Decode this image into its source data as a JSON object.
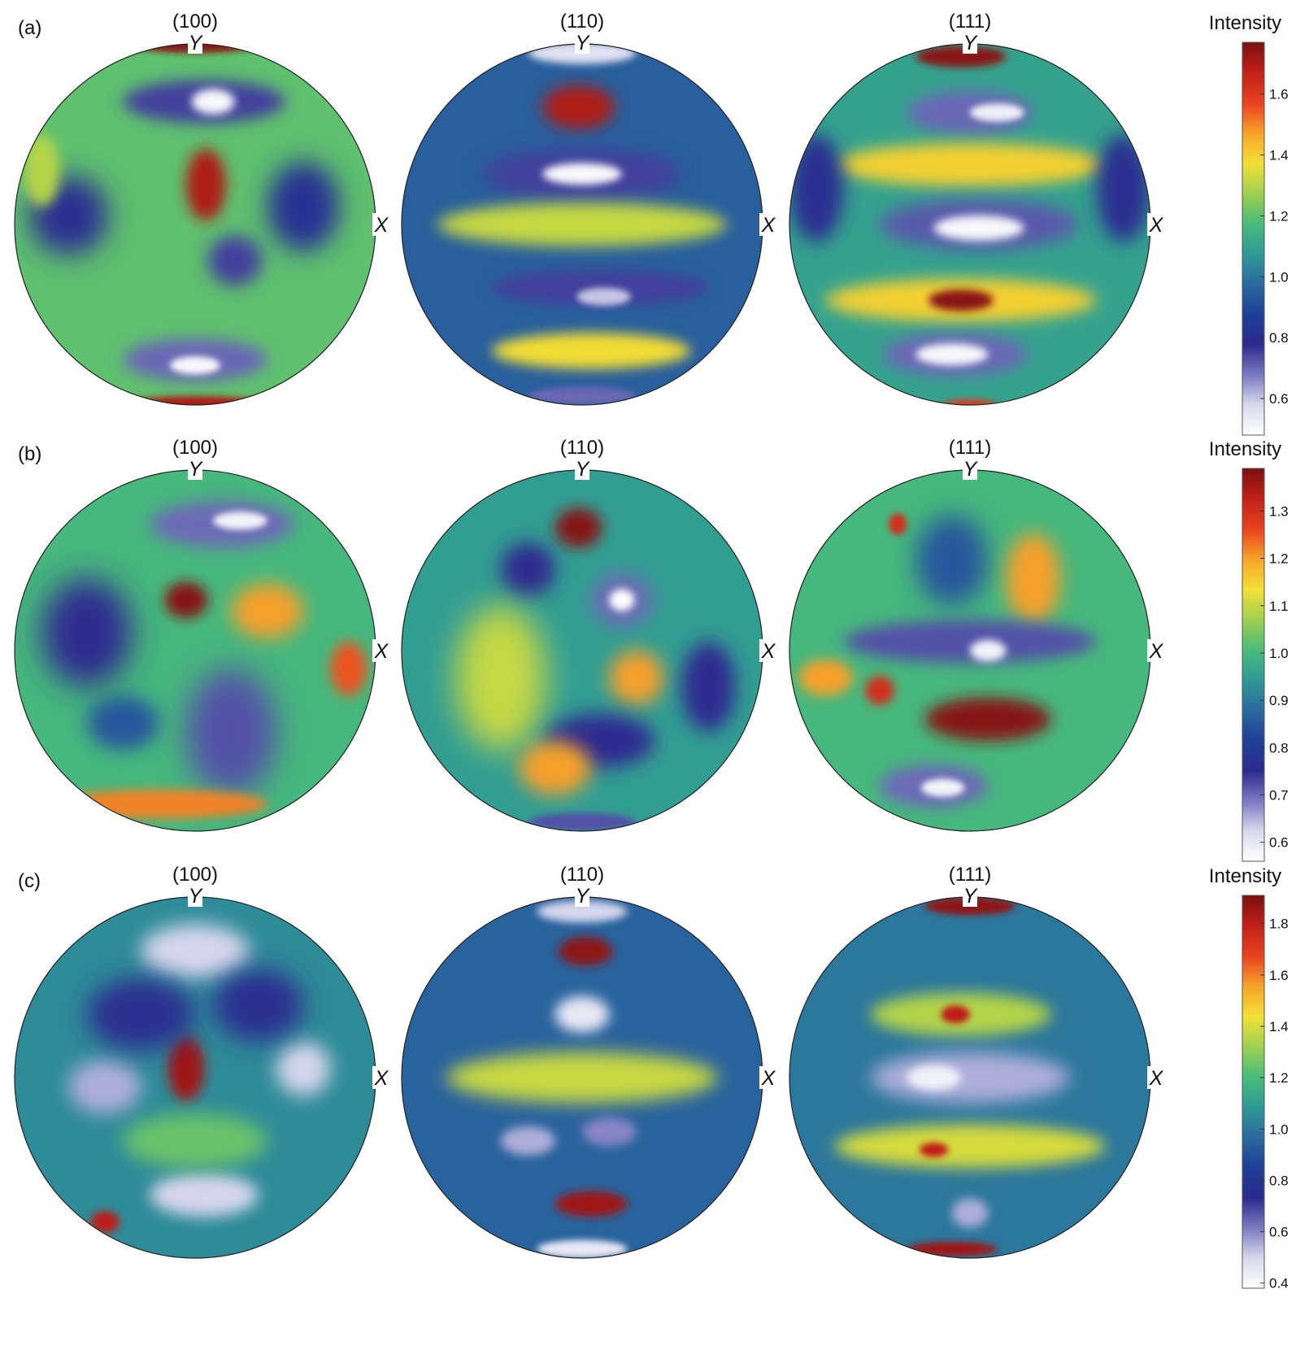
{
  "chart_data": {
    "type": "heatmap",
    "colormap": [
      "#ffffff",
      "#d8d8ee",
      "#7b79c0",
      "#2c2a8e",
      "#1f3f97",
      "#2b6a9e",
      "#2f9a95",
      "#49bb7a",
      "#9fd050",
      "#f2e135",
      "#f7a22a",
      "#e8421f",
      "#c3201a",
      "#7a1010"
    ],
    "axis_labels": {
      "y": "Y",
      "x": "X"
    },
    "rows": [
      {
        "label": "(a)",
        "colorbar": {
          "title": "Intensity",
          "range": [
            0.48,
            1.77
          ],
          "ticks": [
            "1.6",
            "1.4",
            "1.2",
            "1.0",
            "0.8",
            "0.6"
          ],
          "tick_values": [
            1.6,
            1.4,
            1.2,
            1.0,
            0.8,
            0.6
          ]
        },
        "poles": [
          {
            "title": "(100)",
            "background": 1.2,
            "features": [
              {
                "x": 0.0,
                "y": 1.0,
                "rx": 0.35,
                "ry": 0.05,
                "v": 1.75
              },
              {
                "x": 0.0,
                "y": -1.0,
                "rx": 0.4,
                "ry": 0.05,
                "v": 1.7
              },
              {
                "x": 0.05,
                "y": 0.68,
                "rx": 0.45,
                "ry": 0.12,
                "v": 0.75
              },
              {
                "x": 0.1,
                "y": 0.68,
                "rx": 0.12,
                "ry": 0.07,
                "v": 0.5
              },
              {
                "x": 0.06,
                "y": 0.22,
                "rx": 0.11,
                "ry": 0.2,
                "v": 1.7
              },
              {
                "x": -0.7,
                "y": 0.05,
                "rx": 0.22,
                "ry": 0.22,
                "v": 0.8
              },
              {
                "x": 0.6,
                "y": 0.1,
                "rx": 0.2,
                "ry": 0.25,
                "v": 0.82
              },
              {
                "x": 0.22,
                "y": -0.2,
                "rx": 0.15,
                "ry": 0.14,
                "v": 0.75
              },
              {
                "x": 0.0,
                "y": -0.75,
                "rx": 0.4,
                "ry": 0.12,
                "v": 0.7
              },
              {
                "x": 0.0,
                "y": -0.78,
                "rx": 0.14,
                "ry": 0.05,
                "v": 0.5
              },
              {
                "x": -0.85,
                "y": 0.3,
                "rx": 0.1,
                "ry": 0.2,
                "v": 1.3
              }
            ]
          },
          {
            "title": "(110)",
            "background": 0.95,
            "features": [
              {
                "x": 0.0,
                "y": 0.95,
                "rx": 0.3,
                "ry": 0.06,
                "v": 0.55
              },
              {
                "x": -0.02,
                "y": 0.65,
                "rx": 0.2,
                "ry": 0.12,
                "v": 1.7
              },
              {
                "x": 0.0,
                "y": 0.28,
                "rx": 0.55,
                "ry": 0.14,
                "v": 0.75
              },
              {
                "x": 0.0,
                "y": 0.28,
                "rx": 0.22,
                "ry": 0.06,
                "v": 0.5
              },
              {
                "x": 0.0,
                "y": 0.0,
                "rx": 0.8,
                "ry": 0.12,
                "v": 1.32
              },
              {
                "x": 0.1,
                "y": -0.35,
                "rx": 0.6,
                "ry": 0.1,
                "v": 0.75
              },
              {
                "x": 0.12,
                "y": -0.4,
                "rx": 0.15,
                "ry": 0.05,
                "v": 0.6
              },
              {
                "x": 0.05,
                "y": -0.7,
                "rx": 0.55,
                "ry": 0.1,
                "v": 1.38
              },
              {
                "x": 0.0,
                "y": -0.95,
                "rx": 0.3,
                "ry": 0.05,
                "v": 0.7
              }
            ]
          },
          {
            "title": "(111)",
            "background": 1.1,
            "features": [
              {
                "x": -0.05,
                "y": 0.93,
                "rx": 0.25,
                "ry": 0.06,
                "v": 1.75
              },
              {
                "x": 0.0,
                "y": 0.62,
                "rx": 0.35,
                "ry": 0.12,
                "v": 0.7
              },
              {
                "x": 0.15,
                "y": 0.62,
                "rx": 0.15,
                "ry": 0.05,
                "v": 0.52
              },
              {
                "x": 0.0,
                "y": 0.33,
                "rx": 0.75,
                "ry": 0.12,
                "v": 1.4
              },
              {
                "x": 0.05,
                "y": 0.0,
                "rx": 0.55,
                "ry": 0.14,
                "v": 0.72
              },
              {
                "x": 0.05,
                "y": -0.02,
                "rx": 0.25,
                "ry": 0.07,
                "v": 0.5
              },
              {
                "x": -0.05,
                "y": -0.42,
                "rx": 0.75,
                "ry": 0.12,
                "v": 1.4
              },
              {
                "x": -0.05,
                "y": -0.42,
                "rx": 0.18,
                "ry": 0.06,
                "v": 1.75
              },
              {
                "x": -0.08,
                "y": -0.72,
                "rx": 0.4,
                "ry": 0.12,
                "v": 0.7
              },
              {
                "x": -0.1,
                "y": -0.72,
                "rx": 0.2,
                "ry": 0.06,
                "v": 0.5
              },
              {
                "x": 0.0,
                "y": -1.0,
                "rx": 0.15,
                "ry": 0.03,
                "v": 1.6
              },
              {
                "x": -0.85,
                "y": 0.2,
                "rx": 0.15,
                "ry": 0.3,
                "v": 0.8
              },
              {
                "x": 0.85,
                "y": 0.2,
                "rx": 0.15,
                "ry": 0.3,
                "v": 0.8
              }
            ]
          }
        ]
      },
      {
        "label": "(b)",
        "colorbar": {
          "title": "Intensity",
          "range": [
            0.56,
            1.39
          ],
          "ticks": [
            "1.3",
            "1.2",
            "1.1",
            "1.0",
            "0.9",
            "0.8",
            "0.7",
            "0.6"
          ],
          "tick_values": [
            1.3,
            1.2,
            1.1,
            1.0,
            0.9,
            0.8,
            0.7,
            0.6
          ]
        },
        "poles": [
          {
            "title": "(100)",
            "background": 1.0,
            "features": [
              {
                "x": 0.15,
                "y": 0.7,
                "rx": 0.4,
                "ry": 0.13,
                "v": 0.7
              },
              {
                "x": 0.25,
                "y": 0.72,
                "rx": 0.15,
                "ry": 0.05,
                "v": 0.58
              },
              {
                "x": -0.05,
                "y": 0.28,
                "rx": 0.12,
                "ry": 0.1,
                "v": 1.38
              },
              {
                "x": 0.4,
                "y": 0.22,
                "rx": 0.2,
                "ry": 0.15,
                "v": 1.2
              },
              {
                "x": -0.6,
                "y": 0.1,
                "rx": 0.25,
                "ry": 0.3,
                "v": 0.75
              },
              {
                "x": 0.2,
                "y": -0.45,
                "rx": 0.25,
                "ry": 0.35,
                "v": 0.72
              },
              {
                "x": -0.2,
                "y": -0.85,
                "rx": 0.6,
                "ry": 0.08,
                "v": 1.22
              },
              {
                "x": 0.85,
                "y": -0.1,
                "rx": 0.1,
                "ry": 0.15,
                "v": 1.25
              },
              {
                "x": -0.4,
                "y": -0.4,
                "rx": 0.2,
                "ry": 0.15,
                "v": 0.85
              }
            ]
          },
          {
            "title": "(110)",
            "background": 0.95,
            "features": [
              {
                "x": -0.02,
                "y": 0.68,
                "rx": 0.13,
                "ry": 0.11,
                "v": 1.38
              },
              {
                "x": 0.22,
                "y": 0.28,
                "rx": 0.17,
                "ry": 0.15,
                "v": 0.7
              },
              {
                "x": 0.22,
                "y": 0.28,
                "rx": 0.07,
                "ry": 0.06,
                "v": 0.56
              },
              {
                "x": -0.3,
                "y": 0.45,
                "rx": 0.15,
                "ry": 0.15,
                "v": 0.75
              },
              {
                "x": -0.45,
                "y": -0.15,
                "rx": 0.25,
                "ry": 0.4,
                "v": 1.1
              },
              {
                "x": 0.3,
                "y": -0.15,
                "rx": 0.15,
                "ry": 0.15,
                "v": 1.2
              },
              {
                "x": 0.7,
                "y": -0.2,
                "rx": 0.15,
                "ry": 0.25,
                "v": 0.75
              },
              {
                "x": 0.1,
                "y": -0.5,
                "rx": 0.3,
                "ry": 0.15,
                "v": 0.75
              },
              {
                "x": -0.15,
                "y": -0.65,
                "rx": 0.2,
                "ry": 0.15,
                "v": 1.2
              },
              {
                "x": 0.0,
                "y": -0.95,
                "rx": 0.3,
                "ry": 0.05,
                "v": 0.72
              }
            ]
          },
          {
            "title": "(111)",
            "background": 1.0,
            "features": [
              {
                "x": -0.4,
                "y": 0.7,
                "rx": 0.05,
                "ry": 0.06,
                "v": 1.3
              },
              {
                "x": -0.1,
                "y": 0.5,
                "rx": 0.2,
                "ry": 0.25,
                "v": 0.85
              },
              {
                "x": 0.35,
                "y": 0.4,
                "rx": 0.15,
                "ry": 0.25,
                "v": 1.2
              },
              {
                "x": 0.0,
                "y": 0.05,
                "rx": 0.7,
                "ry": 0.12,
                "v": 0.72
              },
              {
                "x": 0.1,
                "y": 0.0,
                "rx": 0.1,
                "ry": 0.06,
                "v": 0.58
              },
              {
                "x": 0.1,
                "y": -0.38,
                "rx": 0.35,
                "ry": 0.12,
                "v": 1.38
              },
              {
                "x": -0.5,
                "y": -0.22,
                "rx": 0.08,
                "ry": 0.08,
                "v": 1.3
              },
              {
                "x": -0.8,
                "y": -0.15,
                "rx": 0.15,
                "ry": 0.1,
                "v": 1.2
              },
              {
                "x": -0.2,
                "y": -0.75,
                "rx": 0.3,
                "ry": 0.12,
                "v": 0.7
              },
              {
                "x": -0.15,
                "y": -0.76,
                "rx": 0.12,
                "ry": 0.05,
                "v": 0.58
              }
            ]
          }
        ]
      },
      {
        "label": "(c)",
        "colorbar": {
          "title": "Intensity",
          "range": [
            0.38,
            1.91
          ],
          "ticks": [
            "1.8",
            "1.6",
            "1.4",
            "1.2",
            "1.0",
            "0.8",
            "0.6",
            "0.4"
          ],
          "tick_values": [
            1.8,
            1.6,
            1.4,
            1.2,
            1.0,
            0.8,
            0.6,
            0.4
          ]
        },
        "poles": [
          {
            "title": "(100)",
            "background": 1.05,
            "features": [
              {
                "x": 0.0,
                "y": 0.7,
                "rx": 0.3,
                "ry": 0.15,
                "v": 0.5
              },
              {
                "x": -0.05,
                "y": 0.05,
                "rx": 0.1,
                "ry": 0.18,
                "v": 1.85
              },
              {
                "x": -0.5,
                "y": -0.05,
                "rx": 0.2,
                "ry": 0.15,
                "v": 0.55
              },
              {
                "x": 0.6,
                "y": 0.05,
                "rx": 0.15,
                "ry": 0.15,
                "v": 0.5
              },
              {
                "x": 0.05,
                "y": -0.65,
                "rx": 0.3,
                "ry": 0.12,
                "v": 0.5
              },
              {
                "x": -0.5,
                "y": -0.8,
                "rx": 0.08,
                "ry": 0.06,
                "v": 1.8
              },
              {
                "x": -0.3,
                "y": 0.35,
                "rx": 0.3,
                "ry": 0.2,
                "v": 0.75
              },
              {
                "x": 0.35,
                "y": 0.4,
                "rx": 0.25,
                "ry": 0.2,
                "v": 0.75
              },
              {
                "x": 0.0,
                "y": -0.35,
                "rx": 0.4,
                "ry": 0.15,
                "v": 1.25
              }
            ]
          },
          {
            "title": "(110)",
            "background": 0.95,
            "features": [
              {
                "x": 0.0,
                "y": 0.92,
                "rx": 0.25,
                "ry": 0.06,
                "v": 0.5
              },
              {
                "x": 0.02,
                "y": 0.7,
                "rx": 0.15,
                "ry": 0.08,
                "v": 1.88
              },
              {
                "x": 0.0,
                "y": 0.35,
                "rx": 0.15,
                "ry": 0.1,
                "v": 0.45
              },
              {
                "x": 0.0,
                "y": 0.0,
                "rx": 0.75,
                "ry": 0.14,
                "v": 1.38
              },
              {
                "x": -0.3,
                "y": -0.35,
                "rx": 0.15,
                "ry": 0.08,
                "v": 0.55
              },
              {
                "x": 0.15,
                "y": -0.3,
                "rx": 0.15,
                "ry": 0.08,
                "v": 0.6
              },
              {
                "x": 0.05,
                "y": -0.7,
                "rx": 0.2,
                "ry": 0.07,
                "v": 1.85
              },
              {
                "x": 0.0,
                "y": -0.95,
                "rx": 0.25,
                "ry": 0.05,
                "v": 0.45
              }
            ]
          },
          {
            "title": "(111)",
            "background": 1.0,
            "features": [
              {
                "x": 0.0,
                "y": 0.95,
                "rx": 0.25,
                "ry": 0.05,
                "v": 1.88
              },
              {
                "x": -0.05,
                "y": 0.35,
                "rx": 0.5,
                "ry": 0.12,
                "v": 1.35
              },
              {
                "x": -0.08,
                "y": 0.35,
                "rx": 0.08,
                "ry": 0.05,
                "v": 1.8
              },
              {
                "x": 0.0,
                "y": 0.0,
                "rx": 0.55,
                "ry": 0.14,
                "v": 0.55
              },
              {
                "x": -0.2,
                "y": 0.0,
                "rx": 0.15,
                "ry": 0.07,
                "v": 0.42
              },
              {
                "x": 0.0,
                "y": -0.38,
                "rx": 0.75,
                "ry": 0.12,
                "v": 1.4
              },
              {
                "x": -0.2,
                "y": -0.4,
                "rx": 0.08,
                "ry": 0.04,
                "v": 1.8
              },
              {
                "x": 0.0,
                "y": -0.75,
                "rx": 0.1,
                "ry": 0.08,
                "v": 0.55
              },
              {
                "x": -0.1,
                "y": -0.95,
                "rx": 0.25,
                "ry": 0.04,
                "v": 1.85
              }
            ]
          }
        ]
      }
    ]
  }
}
